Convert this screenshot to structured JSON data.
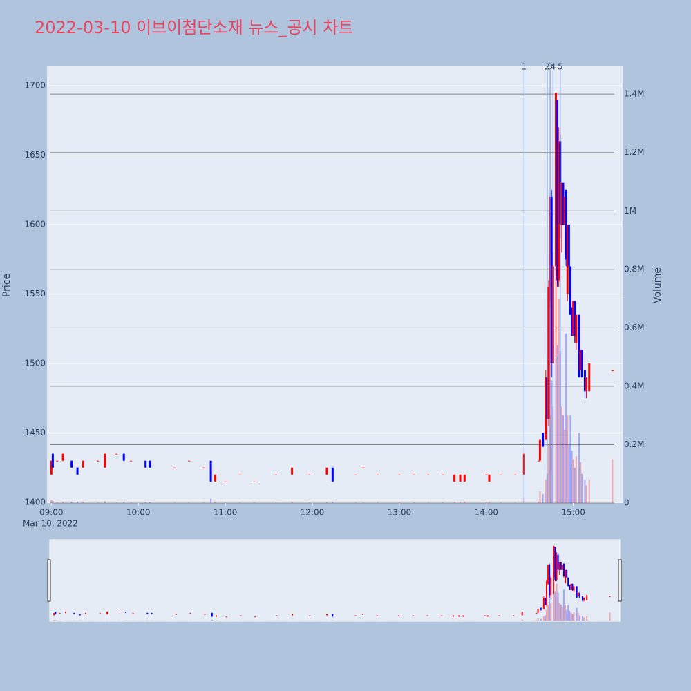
{
  "chart_data": {
    "type": "candlestick",
    "title": "2022-03-10 이브이첨단소재 뉴스_공시 차트",
    "y_label": "Price",
    "y2_label": "Volume",
    "x_date_label": "Mar 10, 2022",
    "increasing_color": "#ff0000",
    "decreasing_color": "#0000ff",
    "xlim": [
      "08:57",
      "15:34"
    ],
    "xticks": [
      "09:00",
      "10:00",
      "11:00",
      "12:00",
      "13:00",
      "14:00",
      "15:00"
    ],
    "ylim": [
      1399.5,
      1714
    ],
    "yticks": [
      1400,
      1450,
      1500,
      1550,
      1600,
      1650,
      1700
    ],
    "y2lim": [
      0,
      1495000
    ],
    "y2ticks": [
      0,
      {
        "value": 200000,
        "label": "0.2M"
      },
      {
        "value": 400000,
        "label": "0.4M"
      },
      {
        "value": 600000,
        "label": "0.6M"
      },
      {
        "value": 800000,
        "label": "0.8M"
      },
      {
        "value": 1000000,
        "label": "1M"
      },
      {
        "value": 1200000,
        "label": "1.2M"
      },
      {
        "value": 1400000,
        "label": "1.4M"
      }
    ],
    "annotations": [
      {
        "x": "14:26",
        "text": "1"
      },
      {
        "x": "14:42",
        "text": "2"
      },
      {
        "x": "14:44",
        "text": "3"
      },
      {
        "x": "14:46",
        "text": "4"
      },
      {
        "x": "14:51",
        "text": "5"
      }
    ],
    "x": [
      "09:00",
      "09:01",
      "09:04",
      "09:08",
      "09:14",
      "09:18",
      "09:22",
      "09:32",
      "09:37",
      "09:45",
      "09:50",
      "09:55",
      "10:05",
      "10:08",
      "10:25",
      "10:35",
      "10:45",
      "10:50",
      "10:53",
      "11:00",
      "11:10",
      "11:20",
      "11:35",
      "11:46",
      "11:58",
      "12:10",
      "12:14",
      "12:30",
      "12:35",
      "12:45",
      "13:00",
      "13:10",
      "13:20",
      "13:30",
      "13:38",
      "13:42",
      "13:45",
      "14:00",
      "14:02",
      "14:10",
      "14:20",
      "14:26",
      "14:36",
      "14:37",
      "14:39",
      "14:41",
      "14:42",
      "14:43",
      "14:44",
      "14:45",
      "14:46",
      "14:48",
      "14:49",
      "14:50",
      "14:51",
      "14:52",
      "14:53",
      "14:54",
      "14:55",
      "14:56",
      "14:57",
      "14:58",
      "14:59",
      "15:00",
      "15:01",
      "15:02",
      "15:04",
      "15:05",
      "15:06",
      "15:08",
      "15:09",
      "15:11",
      "15:27"
    ],
    "open": [
      1420,
      1435,
      1430,
      1430,
      1430,
      1425,
      1425,
      1430,
      1425,
      1435,
      1435,
      1430,
      1430,
      1430,
      1425,
      1430,
      1425,
      1430,
      1415,
      1415,
      1420,
      1415,
      1420,
      1420,
      1420,
      1420,
      1425,
      1420,
      1425,
      1420,
      1420,
      1420,
      1420,
      1420,
      1415,
      1415,
      1415,
      1420,
      1415,
      1420,
      1420,
      1420,
      1430,
      1430,
      1450,
      1445,
      1490,
      1460,
      1545,
      1620,
      1500,
      1570,
      1690,
      1560,
      1660,
      1600,
      1630,
      1600,
      1625,
      1550,
      1600,
      1570,
      1540,
      1520,
      1545,
      1515,
      1535,
      1495,
      1510,
      1495,
      1480,
      1480,
      1495
    ],
    "high": [
      1430,
      1435,
      1430,
      1435,
      1430,
      1425,
      1430,
      1430,
      1435,
      1435,
      1435,
      1430,
      1430,
      1430,
      1425,
      1430,
      1425,
      1430,
      1420,
      1415,
      1420,
      1415,
      1420,
      1425,
      1420,
      1425,
      1425,
      1420,
      1425,
      1420,
      1420,
      1420,
      1420,
      1420,
      1420,
      1420,
      1420,
      1420,
      1420,
      1420,
      1420,
      1435,
      1430,
      1445,
      1450,
      1495,
      1490,
      1560,
      1620,
      1625,
      1580,
      1695,
      1690,
      1670,
      1665,
      1630,
      1630,
      1620,
      1625,
      1600,
      1600,
      1570,
      1540,
      1545,
      1545,
      1535,
      1535,
      1510,
      1510,
      1495,
      1490,
      1500,
      1495
    ],
    "low": [
      1420,
      1425,
      1430,
      1430,
      1425,
      1420,
      1425,
      1430,
      1425,
      1435,
      1430,
      1430,
      1425,
      1425,
      1425,
      1430,
      1425,
      1415,
      1415,
      1415,
      1420,
      1415,
      1420,
      1420,
      1420,
      1420,
      1415,
      1420,
      1425,
      1420,
      1420,
      1420,
      1420,
      1420,
      1415,
      1415,
      1415,
      1420,
      1415,
      1420,
      1420,
      1420,
      1430,
      1430,
      1440,
      1445,
      1460,
      1455,
      1540,
      1490,
      1490,
      1505,
      1555,
      1555,
      1590,
      1580,
      1600,
      1600,
      1570,
      1545,
      1570,
      1535,
      1520,
      1520,
      1515,
      1510,
      1490,
      1495,
      1490,
      1475,
      1475,
      1480,
      1495
    ],
    "close": [
      1430,
      1425,
      1430,
      1435,
      1425,
      1420,
      1430,
      1430,
      1435,
      1435,
      1430,
      1430,
      1425,
      1425,
      1425,
      1430,
      1425,
      1415,
      1420,
      1415,
      1420,
      1415,
      1420,
      1425,
      1420,
      1425,
      1415,
      1420,
      1425,
      1420,
      1420,
      1420,
      1420,
      1420,
      1420,
      1420,
      1420,
      1420,
      1420,
      1420,
      1420,
      1435,
      1430,
      1445,
      1440,
      1490,
      1460,
      1555,
      1620,
      1500,
      1570,
      1695,
      1560,
      1660,
      1600,
      1630,
      1600,
      1620,
      1575,
      1600,
      1570,
      1535,
      1520,
      1545,
      1520,
      1535,
      1490,
      1510,
      1490,
      1480,
      1490,
      1500,
      1495
    ],
    "volume": [
      12000,
      8000,
      3000,
      4000,
      4000,
      5000,
      4000,
      2000,
      6000,
      2000,
      4000,
      2000,
      3000,
      3000,
      2000,
      2000,
      2000,
      15000,
      5000,
      2000,
      2000,
      2000,
      2000,
      4000,
      2000,
      3000,
      5000,
      2000,
      2000,
      2000,
      2000,
      2000,
      2000,
      2000,
      4000,
      4000,
      4000,
      2000,
      3000,
      2000,
      2000,
      20000,
      5000,
      40000,
      30000,
      80000,
      100000,
      200000,
      300000,
      420000,
      330000,
      1320000,
      540000,
      700000,
      520000,
      330000,
      300000,
      250000,
      580000,
      300000,
      200000,
      300000,
      180000,
      150000,
      120000,
      160000,
      240000,
      140000,
      100000,
      80000,
      60000,
      80000,
      150000
    ]
  }
}
